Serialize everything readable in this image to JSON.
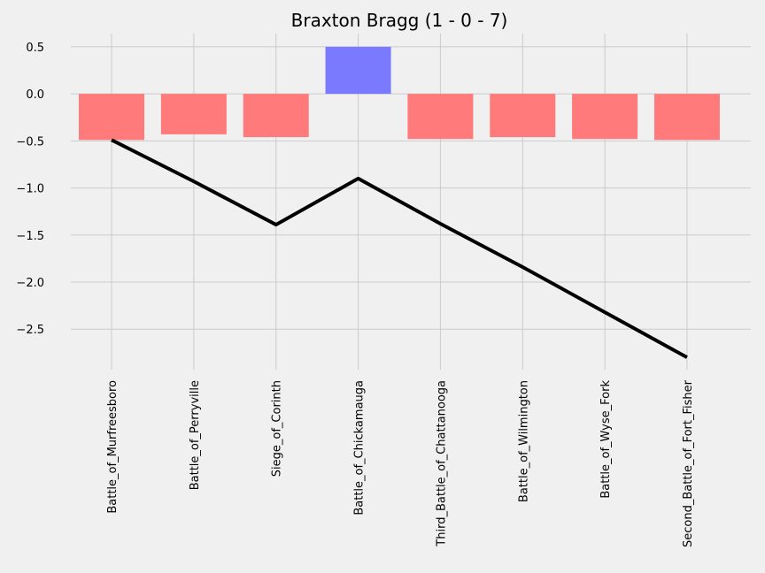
{
  "chart_data": {
    "type": "bar",
    "title": "Braxton Bragg (1 - 0 - 7)",
    "xlabel": "",
    "ylabel": "",
    "categories": [
      "Battle_of_Murfreesboro",
      "Battle_of_Perryville",
      "Siege_of_Corinth",
      "Battle_of_Chickamauga",
      "Third_Battle_of_Chattanooga",
      "Battle_of_Wilmington",
      "Battle_of_Wyse_Fork",
      "Second_Battle_of_Fort_Fisher"
    ],
    "bar_values": [
      -0.49,
      -0.43,
      -0.46,
      0.5,
      -0.48,
      -0.46,
      -0.48,
      -0.49
    ],
    "line_values": [
      -0.49,
      -0.93,
      -1.39,
      -0.9,
      -1.38,
      -1.84,
      -2.32,
      -2.8
    ],
    "bar_colors": [
      "#ff7a7a",
      "#ff7a7a",
      "#ff7a7a",
      "#7a7aff",
      "#ff7a7a",
      "#ff7a7a",
      "#ff7a7a",
      "#ff7a7a"
    ],
    "line_color": "#000000",
    "ylim": [
      -2.93,
      0.64
    ],
    "yticks": [
      0.5,
      0.0,
      -0.5,
      -1.0,
      -1.5,
      -2.0,
      -2.5
    ],
    "ytick_labels": [
      "0.5",
      "0.0",
      "−0.5",
      "−1.0",
      "−1.5",
      "−2.0",
      "−2.5"
    ],
    "grid": true
  }
}
